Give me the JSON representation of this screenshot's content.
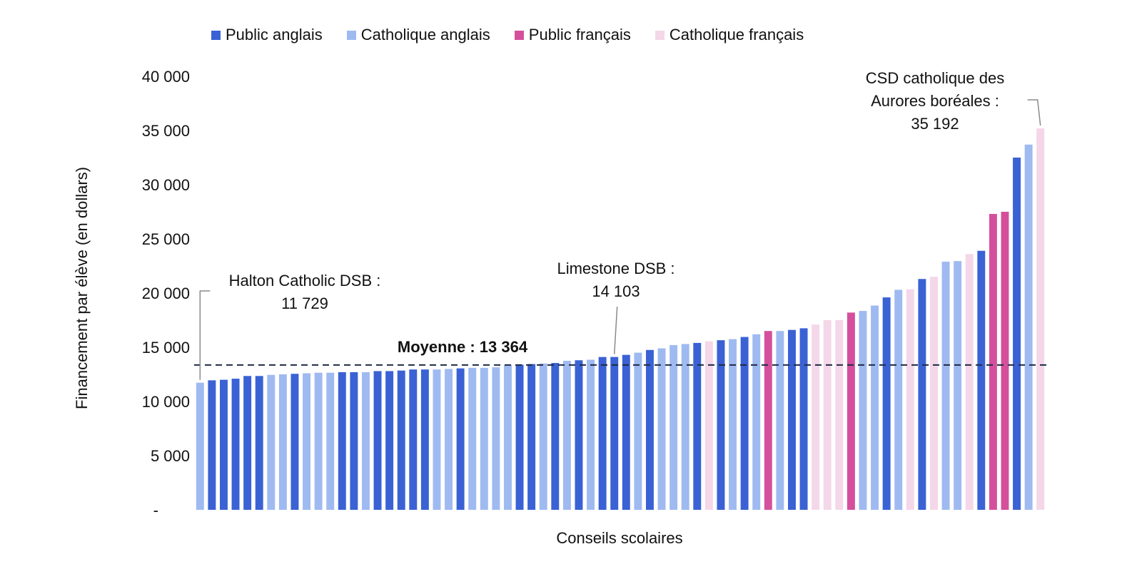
{
  "chart_data": {
    "type": "bar",
    "xlabel": "Conseils scolaires",
    "ylabel": "Financement par élève (en dollars)",
    "ylim": [
      0,
      40000
    ],
    "yticks": [
      {
        "value": 0,
        "label": "-"
      },
      {
        "value": 5000,
        "label": "5 000"
      },
      {
        "value": 10000,
        "label": "10 000"
      },
      {
        "value": 15000,
        "label": "15 000"
      },
      {
        "value": 20000,
        "label": "20 000"
      },
      {
        "value": 25000,
        "label": "25 000"
      },
      {
        "value": 30000,
        "label": "30 000"
      },
      {
        "value": 35000,
        "label": "35 000"
      },
      {
        "value": 40000,
        "label": "40 000"
      }
    ],
    "grid": false,
    "legend_position": "top",
    "series": [
      {
        "key": "PA",
        "name": "Public anglais",
        "color": "#3a62d4"
      },
      {
        "key": "CA",
        "name": "Catholique anglais",
        "color": "#9fbaf0"
      },
      {
        "key": "PF",
        "name": "Public français",
        "color": "#d4509c"
      },
      {
        "key": "CF",
        "name": "Catholique français",
        "color": "#f4d7e8"
      }
    ],
    "bars": [
      {
        "value": 11729,
        "series": "CA"
      },
      {
        "value": 11950,
        "series": "PA"
      },
      {
        "value": 12000,
        "series": "PA"
      },
      {
        "value": 12100,
        "series": "PA"
      },
      {
        "value": 12350,
        "series": "PA"
      },
      {
        "value": 12350,
        "series": "PA"
      },
      {
        "value": 12450,
        "series": "CA"
      },
      {
        "value": 12500,
        "series": "CA"
      },
      {
        "value": 12550,
        "series": "PA"
      },
      {
        "value": 12600,
        "series": "CA"
      },
      {
        "value": 12650,
        "series": "CA"
      },
      {
        "value": 12650,
        "series": "CA"
      },
      {
        "value": 12700,
        "series": "PA"
      },
      {
        "value": 12700,
        "series": "PA"
      },
      {
        "value": 12700,
        "series": "CA"
      },
      {
        "value": 12800,
        "series": "PA"
      },
      {
        "value": 12800,
        "series": "PA"
      },
      {
        "value": 12850,
        "series": "PA"
      },
      {
        "value": 12950,
        "series": "PA"
      },
      {
        "value": 12950,
        "series": "PA"
      },
      {
        "value": 12950,
        "series": "CA"
      },
      {
        "value": 13000,
        "series": "CA"
      },
      {
        "value": 13050,
        "series": "PA"
      },
      {
        "value": 13100,
        "series": "CA"
      },
      {
        "value": 13100,
        "series": "CA"
      },
      {
        "value": 13150,
        "series": "CA"
      },
      {
        "value": 13350,
        "series": "CA"
      },
      {
        "value": 13400,
        "series": "PA"
      },
      {
        "value": 13450,
        "series": "PA"
      },
      {
        "value": 13500,
        "series": "CA"
      },
      {
        "value": 13550,
        "series": "PA"
      },
      {
        "value": 13750,
        "series": "CA"
      },
      {
        "value": 13800,
        "series": "PA"
      },
      {
        "value": 13850,
        "series": "CA"
      },
      {
        "value": 14100,
        "series": "PA"
      },
      {
        "value": 14103,
        "series": "PA"
      },
      {
        "value": 14300,
        "series": "PA"
      },
      {
        "value": 14500,
        "series": "CA"
      },
      {
        "value": 14750,
        "series": "PA"
      },
      {
        "value": 14900,
        "series": "CA"
      },
      {
        "value": 15200,
        "series": "CA"
      },
      {
        "value": 15300,
        "series": "CA"
      },
      {
        "value": 15400,
        "series": "PA"
      },
      {
        "value": 15550,
        "series": "CF"
      },
      {
        "value": 15650,
        "series": "PA"
      },
      {
        "value": 15750,
        "series": "CA"
      },
      {
        "value": 15950,
        "series": "PA"
      },
      {
        "value": 16200,
        "series": "CA"
      },
      {
        "value": 16500,
        "series": "PF"
      },
      {
        "value": 16500,
        "series": "CA"
      },
      {
        "value": 16600,
        "series": "PA"
      },
      {
        "value": 16750,
        "series": "PA"
      },
      {
        "value": 17100,
        "series": "CF"
      },
      {
        "value": 17500,
        "series": "CF"
      },
      {
        "value": 17500,
        "series": "CF"
      },
      {
        "value": 18200,
        "series": "PF"
      },
      {
        "value": 18350,
        "series": "CA"
      },
      {
        "value": 18850,
        "series": "CA"
      },
      {
        "value": 19600,
        "series": "PA"
      },
      {
        "value": 20300,
        "series": "CA"
      },
      {
        "value": 20350,
        "series": "CF"
      },
      {
        "value": 21300,
        "series": "PA"
      },
      {
        "value": 21500,
        "series": "CF"
      },
      {
        "value": 22900,
        "series": "CA"
      },
      {
        "value": 22950,
        "series": "CA"
      },
      {
        "value": 23600,
        "series": "CF"
      },
      {
        "value": 23900,
        "series": "PA"
      },
      {
        "value": 27300,
        "series": "PF"
      },
      {
        "value": 27500,
        "series": "PF"
      },
      {
        "value": 32500,
        "series": "PA"
      },
      {
        "value": 33700,
        "series": "CA"
      },
      {
        "value": 35192,
        "series": "CF"
      }
    ],
    "average": {
      "value": 13364,
      "label": "Moyenne : 13 364"
    },
    "annotations": [
      {
        "bar_index": 0,
        "lines": [
          "Halton Catholic DSB :",
          "11 729"
        ]
      },
      {
        "bar_index": 35,
        "lines": [
          "Limestone DSB :",
          "14 103"
        ]
      },
      {
        "bar_index": 71,
        "lines": [
          "CSD catholique des",
          "Aurores boréales :",
          "35 192"
        ]
      }
    ]
  }
}
